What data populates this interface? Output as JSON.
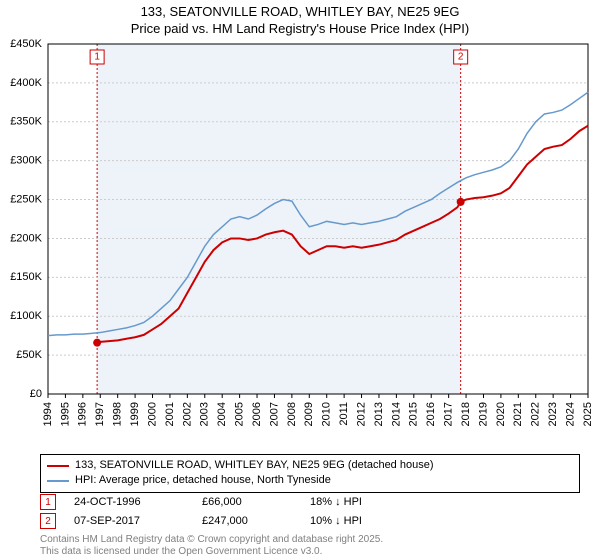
{
  "title": {
    "line1": "133, SEATONVILLE ROAD, WHITLEY BAY, NE25 9EG",
    "line2": "Price paid vs. HM Land Registry's House Price Index (HPI)",
    "fontsize": 13
  },
  "chart": {
    "type": "line",
    "background_color": "#ffffff",
    "grid_color": "#cccccc",
    "ylim": [
      0,
      450000
    ],
    "ytick_step": 50000,
    "ytick_labels": [
      "£0",
      "£50K",
      "£100K",
      "£150K",
      "£200K",
      "£250K",
      "£300K",
      "£350K",
      "£400K",
      "£450K"
    ],
    "x_start_year": 1994,
    "x_end_year": 2025,
    "xtick_labels": [
      "1994",
      "1995",
      "1996",
      "1997",
      "1998",
      "1999",
      "2000",
      "2001",
      "2002",
      "2003",
      "2004",
      "2005",
      "2006",
      "2007",
      "2008",
      "2009",
      "2010",
      "2011",
      "2012",
      "2013",
      "2014",
      "2015",
      "2016",
      "2017",
      "2018",
      "2019",
      "2020",
      "2021",
      "2022",
      "2023",
      "2024",
      "2025"
    ],
    "label_fontsize": 11,
    "series": {
      "red": {
        "color": "#cc0000",
        "width": 2,
        "label": "133, SEATONVILLE ROAD, WHITLEY BAY, NE25 9EG (detached house)",
        "data": [
          [
            1996.82,
            66000
          ],
          [
            1997,
            67000
          ],
          [
            1997.5,
            68000
          ],
          [
            1998,
            69000
          ],
          [
            1998.5,
            71000
          ],
          [
            1999,
            73000
          ],
          [
            1999.5,
            76000
          ],
          [
            2000,
            83000
          ],
          [
            2000.5,
            90000
          ],
          [
            2001,
            100000
          ],
          [
            2001.5,
            110000
          ],
          [
            2002,
            130000
          ],
          [
            2002.5,
            150000
          ],
          [
            2003,
            170000
          ],
          [
            2003.5,
            185000
          ],
          [
            2004,
            195000
          ],
          [
            2004.5,
            200000
          ],
          [
            2005,
            200000
          ],
          [
            2005.5,
            198000
          ],
          [
            2006,
            200000
          ],
          [
            2006.5,
            205000
          ],
          [
            2007,
            208000
          ],
          [
            2007.5,
            210000
          ],
          [
            2008,
            205000
          ],
          [
            2008.5,
            190000
          ],
          [
            2009,
            180000
          ],
          [
            2009.5,
            185000
          ],
          [
            2010,
            190000
          ],
          [
            2010.5,
            190000
          ],
          [
            2011,
            188000
          ],
          [
            2011.5,
            190000
          ],
          [
            2012,
            188000
          ],
          [
            2012.5,
            190000
          ],
          [
            2013,
            192000
          ],
          [
            2013.5,
            195000
          ],
          [
            2014,
            198000
          ],
          [
            2014.5,
            205000
          ],
          [
            2015,
            210000
          ],
          [
            2015.5,
            215000
          ],
          [
            2016,
            220000
          ],
          [
            2016.5,
            225000
          ],
          [
            2017,
            232000
          ],
          [
            2017.5,
            240000
          ],
          [
            2017.69,
            247000
          ],
          [
            2018,
            250000
          ],
          [
            2018.5,
            252000
          ],
          [
            2019,
            253000
          ],
          [
            2019.5,
            255000
          ],
          [
            2020,
            258000
          ],
          [
            2020.5,
            265000
          ],
          [
            2021,
            280000
          ],
          [
            2021.5,
            295000
          ],
          [
            2022,
            305000
          ],
          [
            2022.5,
            315000
          ],
          [
            2023,
            318000
          ],
          [
            2023.5,
            320000
          ],
          [
            2024,
            328000
          ],
          [
            2024.5,
            338000
          ],
          [
            2025,
            345000
          ]
        ]
      },
      "blue": {
        "color": "#6699cc",
        "width": 1.5,
        "label": "HPI: Average price, detached house, North Tyneside",
        "data": [
          [
            1994,
            75000
          ],
          [
            1994.5,
            76000
          ],
          [
            1995,
            76000
          ],
          [
            1995.5,
            77000
          ],
          [
            1996,
            77000
          ],
          [
            1996.5,
            78000
          ],
          [
            1997,
            79000
          ],
          [
            1997.5,
            81000
          ],
          [
            1998,
            83000
          ],
          [
            1998.5,
            85000
          ],
          [
            1999,
            88000
          ],
          [
            1999.5,
            92000
          ],
          [
            2000,
            100000
          ],
          [
            2000.5,
            110000
          ],
          [
            2001,
            120000
          ],
          [
            2001.5,
            135000
          ],
          [
            2002,
            150000
          ],
          [
            2002.5,
            170000
          ],
          [
            2003,
            190000
          ],
          [
            2003.5,
            205000
          ],
          [
            2004,
            215000
          ],
          [
            2004.5,
            225000
          ],
          [
            2005,
            228000
          ],
          [
            2005.5,
            225000
          ],
          [
            2006,
            230000
          ],
          [
            2006.5,
            238000
          ],
          [
            2007,
            245000
          ],
          [
            2007.5,
            250000
          ],
          [
            2008,
            248000
          ],
          [
            2008.5,
            230000
          ],
          [
            2009,
            215000
          ],
          [
            2009.5,
            218000
          ],
          [
            2010,
            222000
          ],
          [
            2010.5,
            220000
          ],
          [
            2011,
            218000
          ],
          [
            2011.5,
            220000
          ],
          [
            2012,
            218000
          ],
          [
            2012.5,
            220000
          ],
          [
            2013,
            222000
          ],
          [
            2013.5,
            225000
          ],
          [
            2014,
            228000
          ],
          [
            2014.5,
            235000
          ],
          [
            2015,
            240000
          ],
          [
            2015.5,
            245000
          ],
          [
            2016,
            250000
          ],
          [
            2016.5,
            258000
          ],
          [
            2017,
            265000
          ],
          [
            2017.5,
            272000
          ],
          [
            2018,
            278000
          ],
          [
            2018.5,
            282000
          ],
          [
            2019,
            285000
          ],
          [
            2019.5,
            288000
          ],
          [
            2020,
            292000
          ],
          [
            2020.5,
            300000
          ],
          [
            2021,
            315000
          ],
          [
            2021.5,
            335000
          ],
          [
            2022,
            350000
          ],
          [
            2022.5,
            360000
          ],
          [
            2023,
            362000
          ],
          [
            2023.5,
            365000
          ],
          [
            2024,
            372000
          ],
          [
            2024.5,
            380000
          ],
          [
            2025,
            388000
          ]
        ]
      }
    },
    "sale_markers": [
      {
        "n": "1",
        "year": 1996.82,
        "price": 66000,
        "color": "#cc0000"
      },
      {
        "n": "2",
        "year": 2017.69,
        "price": 247000,
        "color": "#cc0000"
      }
    ],
    "sale_band": {
      "start_year": 1996.82,
      "end_year": 2017.69,
      "fill": "#eef3fa",
      "border": "#cc0000"
    }
  },
  "legend": {
    "items": [
      {
        "color": "#cc0000",
        "label": "133, SEATONVILLE ROAD, WHITLEY BAY, NE25 9EG (detached house)"
      },
      {
        "color": "#6699cc",
        "label": "HPI: Average price, detached house, North Tyneside"
      }
    ]
  },
  "sales": [
    {
      "n": "1",
      "date": "24-OCT-1996",
      "price": "£66,000",
      "delta": "18% ↓ HPI",
      "color": "#cc0000"
    },
    {
      "n": "2",
      "date": "07-SEP-2017",
      "price": "£247,000",
      "delta": "10% ↓ HPI",
      "color": "#cc0000"
    }
  ],
  "attribution": {
    "line1": "Contains HM Land Registry data © Crown copyright and database right 2025.",
    "line2": "This data is licensed under the Open Government Licence v3.0.",
    "color": "#808080"
  }
}
